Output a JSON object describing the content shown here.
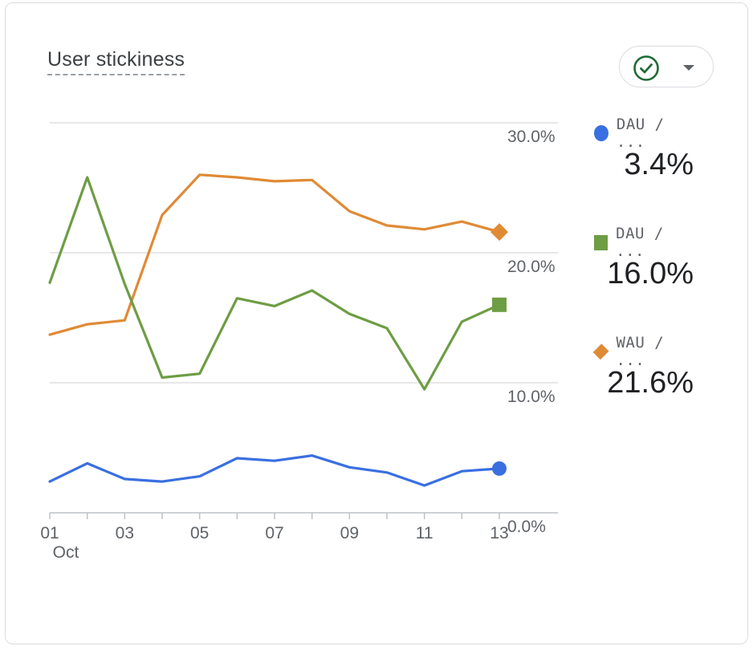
{
  "card": {
    "title": "User stickiness",
    "status_icon": "check-circle-icon",
    "dropdown_icon": "caret-down-icon"
  },
  "chart_data": {
    "type": "line",
    "x": [
      1,
      2,
      3,
      4,
      5,
      6,
      7,
      8,
      9,
      10,
      11,
      12,
      13
    ],
    "x_tick_labels": [
      "01",
      "03",
      "05",
      "07",
      "09",
      "11",
      "13"
    ],
    "x_sub_label": "Oct",
    "y_tick_labels": [
      "30.0%",
      "20.0%",
      "10.0%",
      "0.0%"
    ],
    "ylim": [
      0,
      30
    ],
    "grid": true,
    "legend_position": "right",
    "series": [
      {
        "name": "DAU / ...",
        "color": "#3a6fe1",
        "marker": "circle",
        "value_label": "3.4%",
        "values": [
          2.4,
          3.8,
          2.6,
          2.4,
          2.8,
          4.2,
          4.0,
          4.4,
          3.5,
          3.1,
          2.1,
          3.2,
          3.4
        ]
      },
      {
        "name": "DAU / ...",
        "color": "#6e9d44",
        "marker": "square",
        "value_label": "16.0%",
        "values": [
          17.7,
          25.8,
          17.6,
          10.4,
          10.7,
          16.5,
          15.9,
          17.1,
          15.3,
          14.2,
          9.5,
          14.7,
          16.0
        ]
      },
      {
        "name": "WAU / ...",
        "color": "#e08a35",
        "marker": "diamond",
        "value_label": "21.6%",
        "values": [
          13.7,
          14.5,
          14.8,
          22.9,
          26.0,
          25.8,
          25.5,
          25.6,
          23.2,
          22.1,
          21.8,
          22.4,
          21.6
        ]
      }
    ]
  }
}
